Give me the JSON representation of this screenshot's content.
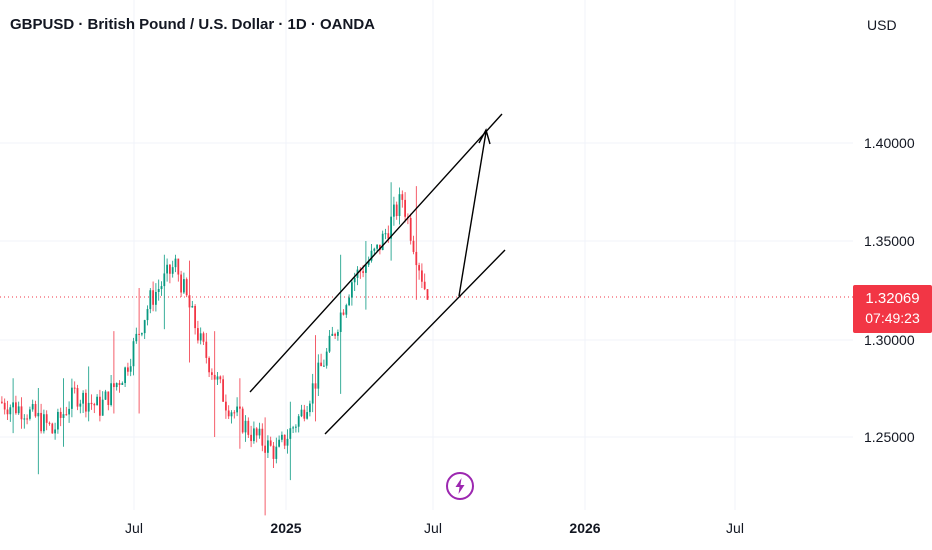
{
  "header": {
    "title": "GBPUSD · British Pound / U.S. Dollar · 1D · OANDA",
    "currency": "USD"
  },
  "price_axis": {
    "ticks": [
      "1.40000",
      "1.35000",
      "1.30000",
      "1.25000"
    ]
  },
  "last_price": {
    "value": "1.32069",
    "countdown": "07:49:23"
  },
  "time_axis": {
    "labels": [
      "Jul",
      "2025",
      "Jul",
      "2026",
      "Jul"
    ]
  },
  "icons": {
    "event": "lightning-icon"
  },
  "colors": {
    "up": "#089981",
    "down": "#f23645",
    "event": "#9c27b0"
  },
  "chart_data": {
    "type": "candlestick",
    "symbol": "GBPUSD",
    "interval": "1D",
    "ylim": [
      1.21,
      1.43
    ],
    "grid": true,
    "last_price": 1.32069,
    "series": [
      {
        "date": "2024-03",
        "open": 1.268,
        "close": 1.264,
        "high": 1.28,
        "low": 1.252
      },
      {
        "date": "2024-04",
        "open": 1.264,
        "close": 1.255,
        "high": 1.275,
        "low": 1.231
      },
      {
        "date": "2024-05",
        "open": 1.25,
        "close": 1.272,
        "high": 1.28,
        "low": 1.245
      },
      {
        "date": "2024-06",
        "open": 1.272,
        "close": 1.265,
        "high": 1.286,
        "low": 1.258
      },
      {
        "date": "2024-07",
        "open": 1.265,
        "close": 1.284,
        "high": 1.304,
        "low": 1.262
      },
      {
        "date": "2024-08",
        "open": 1.284,
        "close": 1.32,
        "high": 1.326,
        "low": 1.262
      },
      {
        "date": "2024-09",
        "open": 1.32,
        "close": 1.338,
        "high": 1.343,
        "low": 1.305
      },
      {
        "date": "2024-10",
        "open": 1.338,
        "close": 1.298,
        "high": 1.34,
        "low": 1.288
      },
      {
        "date": "2024-11",
        "open": 1.298,
        "close": 1.268,
        "high": 1.304,
        "low": 1.25
      },
      {
        "date": "2024-12",
        "open": 1.268,
        "close": 1.252,
        "high": 1.28,
        "low": 1.244
      },
      {
        "date": "2025-01",
        "open": 1.252,
        "close": 1.242,
        "high": 1.26,
        "low": 1.21
      },
      {
        "date": "2025-02",
        "open": 1.242,
        "close": 1.262,
        "high": 1.268,
        "low": 1.228
      },
      {
        "date": "2025-03",
        "open": 1.262,
        "close": 1.292,
        "high": 1.302,
        "low": 1.258
      },
      {
        "date": "2025-04",
        "open": 1.292,
        "close": 1.33,
        "high": 1.343,
        "low": 1.272
      },
      {
        "date": "2025-05",
        "open": 1.33,
        "close": 1.345,
        "high": 1.35,
        "low": 1.315
      },
      {
        "date": "2025-06",
        "open": 1.345,
        "close": 1.372,
        "high": 1.38,
        "low": 1.34
      },
      {
        "date": "2025-07",
        "open": 1.372,
        "close": 1.321,
        "high": 1.378,
        "low": 1.32
      }
    ],
    "annotations": {
      "channel_upper": [
        [
          "2024-11",
          1.272
        ],
        [
          "2025-08",
          1.413
        ]
      ],
      "channel_lower": [
        [
          "2025-01",
          1.253
        ],
        [
          "2025-08",
          1.342
        ]
      ],
      "projection_arrow": [
        [
          "2025-07",
          1.321
        ],
        [
          "2025-07",
          1.408
        ]
      ]
    }
  }
}
